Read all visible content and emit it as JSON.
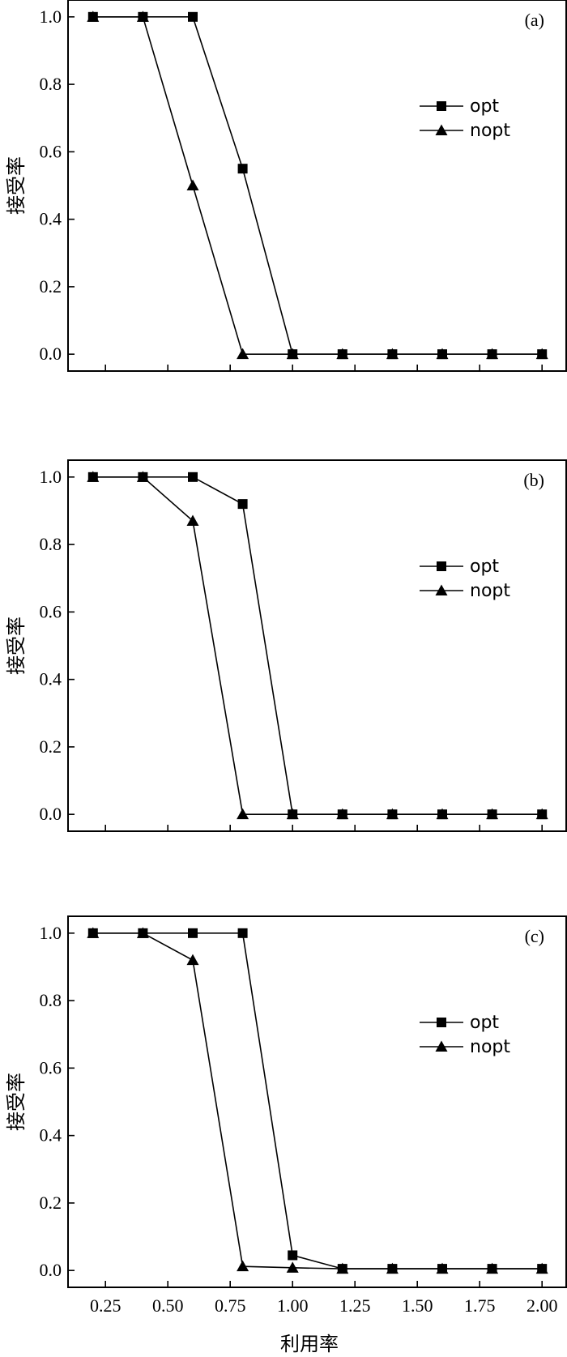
{
  "chart_data": [
    {
      "type": "line",
      "panel_label": "(a)",
      "ylabel": "接受率",
      "xlabel": "",
      "x": [
        0.2,
        0.4,
        0.6,
        0.8,
        1.0,
        1.2,
        1.4,
        1.6,
        1.8,
        2.0
      ],
      "xlim": [
        0.1,
        2.1
      ],
      "ylim": [
        -0.05,
        1.05
      ],
      "yticks": [
        0.0,
        0.2,
        0.4,
        0.6,
        0.8,
        1.0
      ],
      "ytick_labels": [
        "0.0",
        "0.2",
        "0.4",
        "0.6",
        "0.8",
        "1.0"
      ],
      "legend_position": "center-right",
      "series": [
        {
          "name": "opt",
          "marker": "square",
          "values": [
            1.0,
            1.0,
            1.0,
            0.55,
            0.0,
            0.0,
            0.0,
            0.0,
            0.0,
            0.0
          ]
        },
        {
          "name": "nopt",
          "marker": "triangle",
          "values": [
            1.0,
            1.0,
            0.5,
            0.0,
            0.0,
            0.0,
            0.0,
            0.0,
            0.0,
            0.0
          ]
        }
      ]
    },
    {
      "type": "line",
      "panel_label": "(b)",
      "ylabel": "接受率",
      "xlabel": "",
      "x": [
        0.2,
        0.4,
        0.6,
        0.8,
        1.0,
        1.2,
        1.4,
        1.6,
        1.8,
        2.0
      ],
      "xlim": [
        0.1,
        2.1
      ],
      "ylim": [
        -0.05,
        1.05
      ],
      "yticks": [
        0.0,
        0.2,
        0.4,
        0.6,
        0.8,
        1.0
      ],
      "ytick_labels": [
        "0.0",
        "0.2",
        "0.4",
        "0.6",
        "0.8",
        "1.0"
      ],
      "legend_position": "center-right",
      "series": [
        {
          "name": "opt",
          "marker": "square",
          "values": [
            1.0,
            1.0,
            1.0,
            0.92,
            0.0,
            0.0,
            0.0,
            0.0,
            0.0,
            0.0
          ]
        },
        {
          "name": "nopt",
          "marker": "triangle",
          "values": [
            1.0,
            1.0,
            0.87,
            0.0,
            0.0,
            0.0,
            0.0,
            0.0,
            0.0,
            0.0
          ]
        }
      ]
    },
    {
      "type": "line",
      "panel_label": "(c)",
      "ylabel": "接受率",
      "xlabel": "利用率",
      "x": [
        0.2,
        0.4,
        0.6,
        0.8,
        1.0,
        1.2,
        1.4,
        1.6,
        1.8,
        2.0
      ],
      "xlim": [
        0.1,
        2.1
      ],
      "ylim": [
        -0.05,
        1.05
      ],
      "xticks": [
        0.25,
        0.5,
        0.75,
        1.0,
        1.25,
        1.5,
        1.75,
        2.0
      ],
      "xtick_labels": [
        "0.25",
        "0.50",
        "0.75",
        "1.00",
        "1.25",
        "1.50",
        "1.75",
        "2.00"
      ],
      "yticks": [
        0.0,
        0.2,
        0.4,
        0.6,
        0.8,
        1.0
      ],
      "ytick_labels": [
        "0.0",
        "0.2",
        "0.4",
        "0.6",
        "0.8",
        "1.0"
      ],
      "legend_position": "center-right",
      "series": [
        {
          "name": "opt",
          "marker": "square",
          "values": [
            1.0,
            1.0,
            1.0,
            1.0,
            0.045,
            0.005,
            0.005,
            0.005,
            0.005,
            0.005
          ]
        },
        {
          "name": "nopt",
          "marker": "triangle",
          "values": [
            1.0,
            1.0,
            0.92,
            0.012,
            0.008,
            0.005,
            0.005,
            0.005,
            0.005,
            0.005
          ]
        }
      ]
    }
  ]
}
